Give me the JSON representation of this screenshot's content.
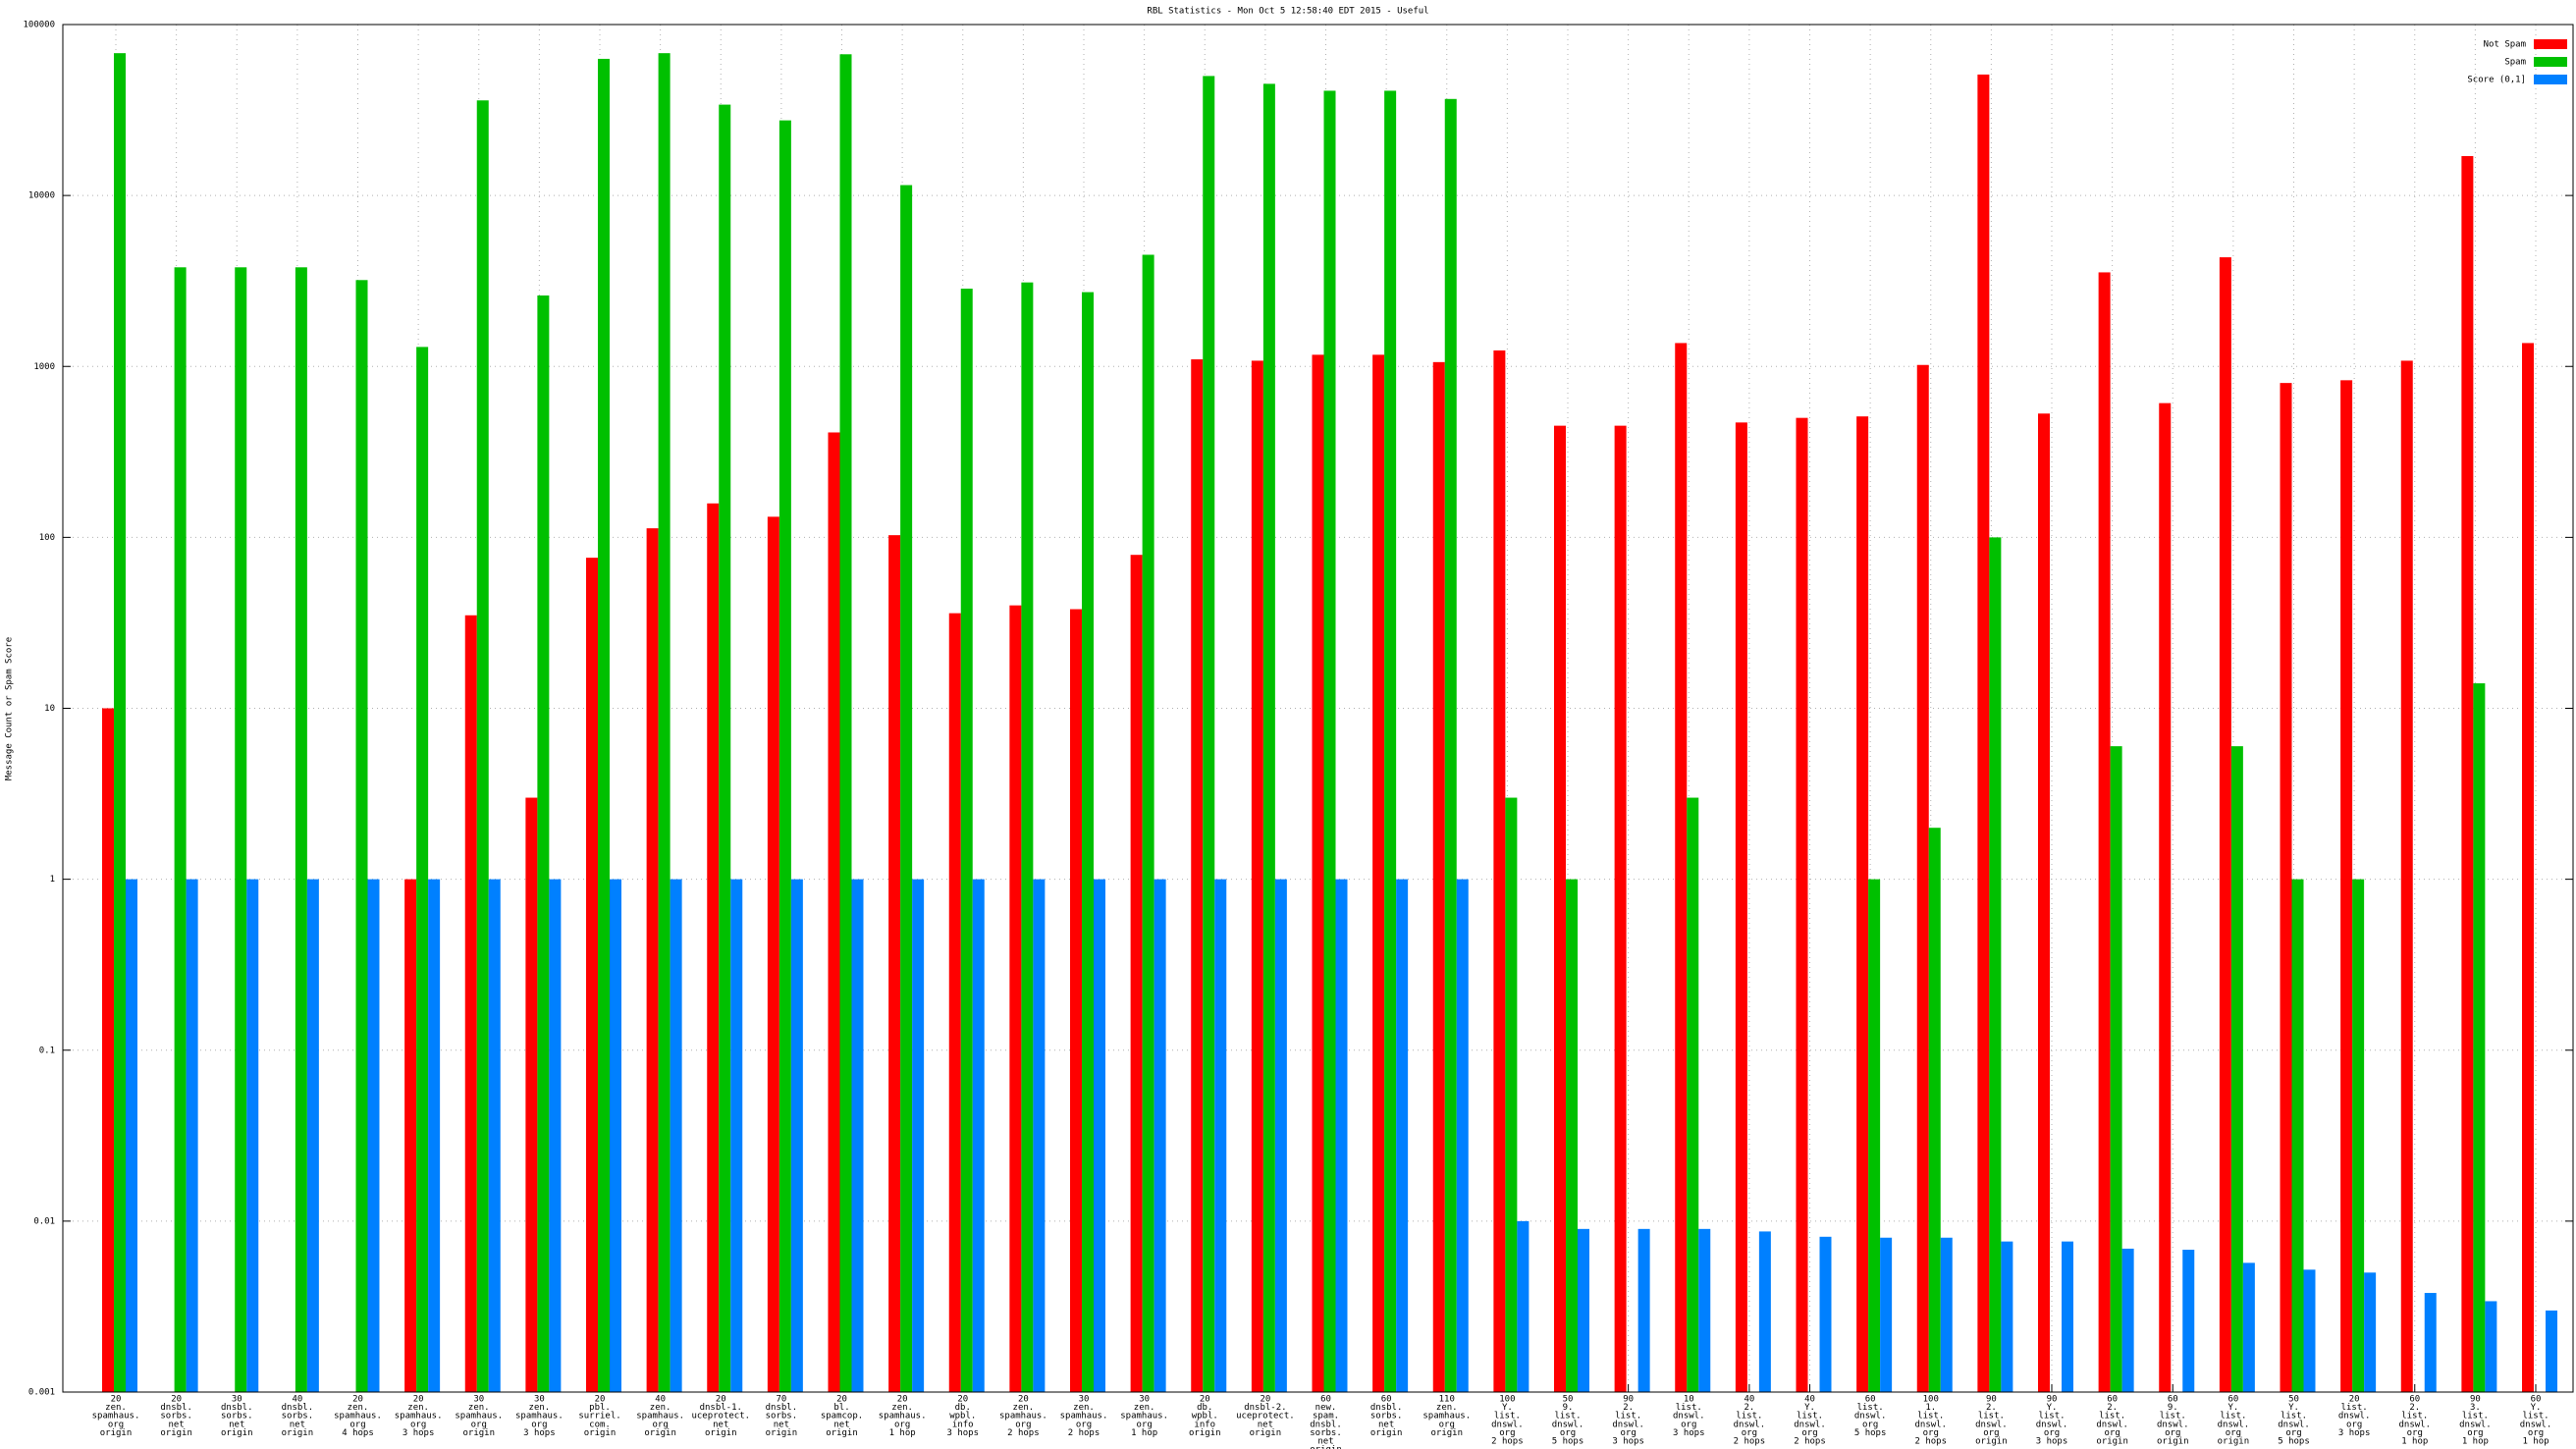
{
  "chart_data": {
    "type": "bar",
    "title": "RBL Statistics - Mon Oct  5 12:58:40 EDT 2015 - Useful",
    "ylabel": "Message Count or Spam Score",
    "yscale": "log",
    "ylim": [
      0.001,
      100000
    ],
    "yticks": [
      0.001,
      0.01,
      0.1,
      1,
      10,
      100,
      1000,
      10000,
      100000
    ],
    "grid": true,
    "legend": "top-right",
    "categories": [
      [
        "20",
        "zen.",
        "spamhaus.",
        "org",
        "origin"
      ],
      [
        "20",
        "dnsbl.",
        "sorbs.",
        "net",
        "origin"
      ],
      [
        "30",
        "dnsbl.",
        "sorbs.",
        "net",
        "origin"
      ],
      [
        "40",
        "dnsbl.",
        "sorbs.",
        "net",
        "origin"
      ],
      [
        "20",
        "zen.",
        "spamhaus.",
        "org",
        "4 hops"
      ],
      [
        "20",
        "zen.",
        "spamhaus.",
        "org",
        "3 hops"
      ],
      [
        "30",
        "zen.",
        "spamhaus.",
        "org",
        "origin"
      ],
      [
        "30",
        "zen.",
        "spamhaus.",
        "org",
        "3 hops"
      ],
      [
        "20",
        "pbl.",
        "surriel.",
        "com.",
        "origin"
      ],
      [
        "40",
        "zen.",
        "spamhaus.",
        "org",
        "origin"
      ],
      [
        "20",
        "dnsbl-1.",
        "uceprotect.",
        "net",
        "origin"
      ],
      [
        "70",
        "dnsbl.",
        "sorbs.",
        "net",
        "origin"
      ],
      [
        "20",
        "bl.",
        "spamcop.",
        "net",
        "origin"
      ],
      [
        "20",
        "zen.",
        "spamhaus.",
        "org",
        "1 hop"
      ],
      [
        "20",
        "db.",
        "wpbl.",
        "info",
        "3 hops"
      ],
      [
        "20",
        "zen.",
        "spamhaus.",
        "org",
        "2 hops"
      ],
      [
        "30",
        "zen.",
        "spamhaus.",
        "org",
        "2 hops"
      ],
      [
        "30",
        "zen.",
        "spamhaus.",
        "org",
        "1 hop"
      ],
      [
        "20",
        "db.",
        "wpbl.",
        "info",
        "origin"
      ],
      [
        "20",
        "dnsbl-2.",
        "uceprotect.",
        "net",
        "origin"
      ],
      [
        "60",
        "new.",
        "spam.",
        "dnsbl.",
        "sorbs.",
        "net",
        "origin"
      ],
      [
        "60",
        "dnsbl.",
        "sorbs.",
        "net",
        "origin"
      ],
      [
        "110",
        "zen.",
        "spamhaus.",
        "org",
        "origin"
      ],
      [
        "100",
        "Y.",
        "list.",
        "dnswl.",
        "org",
        "2 hops"
      ],
      [
        "50",
        "9.",
        "list.",
        "dnswl.",
        "org",
        "5 hops"
      ],
      [
        "90",
        "2.",
        "list.",
        "dnswl.",
        "org",
        "3 hops"
      ],
      [
        "10",
        "list.",
        "dnswl.",
        "org",
        "3 hops"
      ],
      [
        "40",
        "2.",
        "list.",
        "dnswl.",
        "org",
        "2 hops"
      ],
      [
        "40",
        "Y.",
        "list.",
        "dnswl.",
        "org",
        "2 hops"
      ],
      [
        "60",
        "list.",
        "dnswl.",
        "org",
        "5 hops"
      ],
      [
        "100",
        "1.",
        "list.",
        "dnswl.",
        "org",
        "2 hops"
      ],
      [
        "90",
        "2.",
        "list.",
        "dnswl.",
        "org",
        "origin"
      ],
      [
        "90",
        "Y.",
        "list.",
        "dnswl.",
        "org",
        "3 hops"
      ],
      [
        "60",
        "2.",
        "list.",
        "dnswl.",
        "org",
        "origin"
      ],
      [
        "60",
        "9.",
        "list.",
        "dnswl.",
        "org",
        "origin"
      ],
      [
        "60",
        "Y.",
        "list.",
        "dnswl.",
        "org",
        "origin"
      ],
      [
        "50",
        "Y.",
        "list.",
        "dnswl.",
        "org",
        "5 hops"
      ],
      [
        "20",
        "list.",
        "dnswl.",
        "org",
        "3 hops"
      ],
      [
        "60",
        "2.",
        "list.",
        "dnswl.",
        "org",
        "1 hop"
      ],
      [
        "90",
        "3.",
        "list.",
        "dnswl.",
        "org",
        "1 hop"
      ],
      [
        "60",
        "Y.",
        "list.",
        "dnswl.",
        "org",
        "1 hop"
      ]
    ],
    "series": [
      {
        "name": "Not Spam",
        "color": "#ff0000",
        "values": [
          10,
          null,
          null,
          null,
          null,
          1,
          35,
          3,
          76,
          113,
          158,
          132,
          411,
          103,
          36,
          40,
          38,
          79,
          1100,
          1080,
          1170,
          1170,
          1060,
          1240,
          450,
          450,
          1370,
          470,
          500,
          510,
          1020,
          51000,
          530,
          3550,
          610,
          4350,
          800,
          830,
          1080,
          17000,
          1370
        ]
      },
      {
        "name": "Spam",
        "color": "#00c000",
        "values": [
          68000,
          3800,
          3800,
          3800,
          3200,
          1300,
          36000,
          2600,
          63000,
          68000,
          34000,
          27500,
          67000,
          11500,
          2850,
          3100,
          2720,
          4500,
          50000,
          45000,
          41000,
          41000,
          36700,
          3,
          1,
          null,
          3,
          null,
          null,
          1,
          2,
          100,
          null,
          6,
          null,
          6,
          1,
          1,
          null,
          14,
          null
        ]
      },
      {
        "name": "Score (0,1]",
        "color": "#0080ff",
        "values": [
          1,
          1,
          1,
          1,
          1,
          1,
          1,
          1,
          1,
          1,
          1,
          1,
          1,
          1,
          1,
          1,
          1,
          1,
          1,
          1,
          1,
          1,
          1,
          0.01,
          0.009,
          0.009,
          0.009,
          0.0087,
          0.0081,
          0.008,
          0.008,
          0.0076,
          0.0076,
          0.0069,
          0.0068,
          0.0057,
          0.0052,
          0.005,
          0.0038,
          0.0034,
          0.003
        ]
      }
    ]
  }
}
